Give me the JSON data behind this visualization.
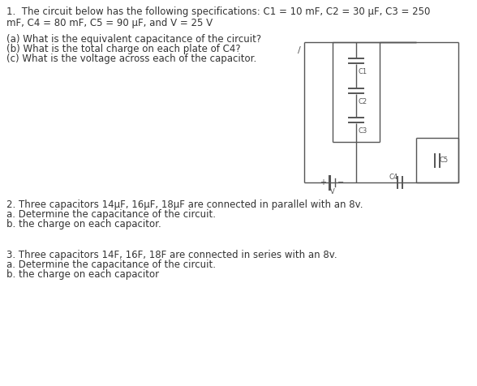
{
  "bg_color": "#ffffff",
  "text_color": "#333333",
  "line1": "1.  The circuit below has the following specifications: C1 = 10 mF, C2 = 30 μF, C3 = 250",
  "line2": "mF, C4 = 80 mF, C5 = 90 μF, and V = 25 V",
  "q1a": "(a) What is the equivalent capacitance of the circuit?",
  "q1b": "(b) What is the total charge on each plate of C4?",
  "q1c": "(c) What is the voltage across each of the capacitor.",
  "section2_title": "2. Three capacitors 14μF, 16μF, 18μF are connected in parallel with an 8v.",
  "section2a": "a. Determine the capacitance of the circuit.",
  "section2b": "b. the charge on each capacitor.",
  "section3_title": "3. Three capacitors 14F, 16F, 18F are connected in series with an 8v.",
  "section3a": "a. Determine the capacitance of the circuit.",
  "section3b": "b. the charge on each capacitor",
  "circuit_color": "#555555",
  "fs_main": 8.5,
  "fs_circuit": 6.0,
  "fig_w": 5.88,
  "fig_h": 4.76,
  "dpi": 100
}
